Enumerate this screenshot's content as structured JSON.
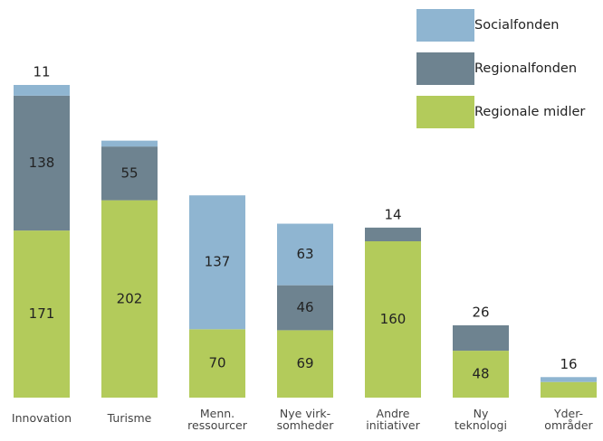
{
  "chart_data": {
    "type": "stacked_bar",
    "categories": [
      "Innovation",
      "Turisme",
      "Menn.\nressourcer",
      "Nye virk-\nsomheder",
      "Andre\ninitiativer",
      "Ny\nteknologi",
      "Yder-\nområder"
    ],
    "series": [
      {
        "name": "Regionale midler",
        "color": "#b3cb5b",
        "values": [
          171,
          202,
          70,
          69,
          160,
          48,
          16
        ]
      },
      {
        "name": "Regionalfonden",
        "color": "#6e8390",
        "values": [
          138,
          55,
          0,
          46,
          14,
          26,
          0
        ]
      },
      {
        "name": "Socialfonden",
        "color": "#8fb5d1",
        "values": [
          11,
          6,
          137,
          63,
          0,
          0,
          5
        ]
      }
    ],
    "legend": "upper right"
  }
}
